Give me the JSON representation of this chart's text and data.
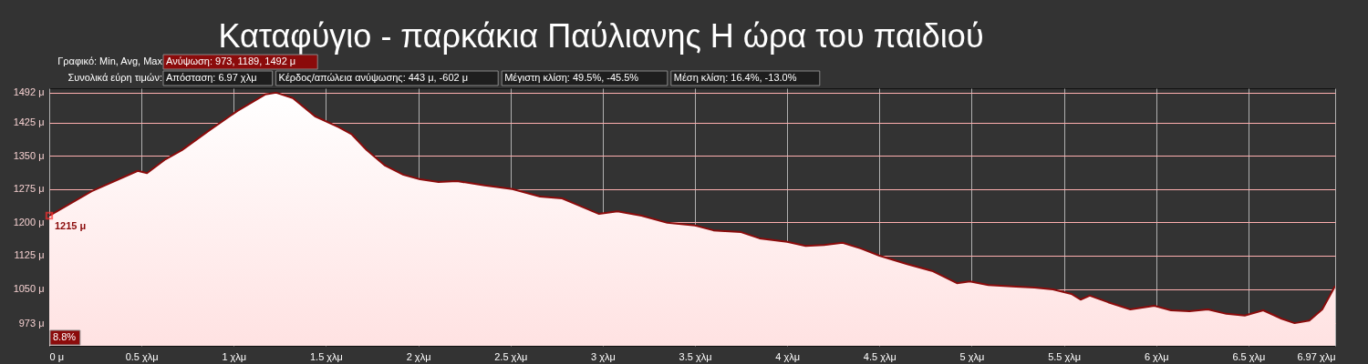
{
  "chart_data": {
    "type": "area",
    "title": "Καταφύγιο - παρκάκια Παύλιανης Η ώρα του παιδιού",
    "x": [
      0,
      0.23,
      0.48,
      0.53,
      0.63,
      0.72,
      0.87,
      1.02,
      1.17,
      1.23,
      1.32,
      1.44,
      1.57,
      1.64,
      1.72,
      1.82,
      1.92,
      2.01,
      2.11,
      2.21,
      2.36,
      2.51,
      2.66,
      2.78,
      2.86,
      2.98,
      3.08,
      3.21,
      3.35,
      3.5,
      3.6,
      3.75,
      3.85,
      4.0,
      4.1,
      4.2,
      4.3,
      4.4,
      4.5,
      4.65,
      4.79,
      4.92,
      4.99,
      5.09,
      5.24,
      5.34,
      5.44,
      5.54,
      5.59,
      5.64,
      5.74,
      5.86,
      5.99,
      6.08,
      6.18,
      6.28,
      6.38,
      6.48,
      6.58,
      6.68,
      6.75,
      6.83,
      6.9,
      6.97
    ],
    "series": [
      {
        "color": "#8b0b0b",
        "values": [
          1215,
          1270,
          1316,
          1311,
          1342,
          1363,
          1408,
          1451,
          1488,
          1492,
          1480,
          1439,
          1414,
          1398,
          1363,
          1328,
          1307,
          1297,
          1291,
          1293,
          1283,
          1275,
          1258,
          1254,
          1240,
          1219,
          1225,
          1215,
          1199,
          1193,
          1182,
          1178,
          1164,
          1156,
          1147,
          1149,
          1154,
          1141,
          1125,
          1106,
          1090,
          1063,
          1067,
          1059,
          1055,
          1053,
          1049,
          1039,
          1026,
          1035,
          1020,
          1004,
          1012,
          1002,
          1000,
          1004,
          994,
          990,
          1002,
          983,
          973,
          979,
          1004,
          1057
        ]
      }
    ],
    "xlim": [
      0,
      6.97
    ],
    "ylim": [
      922,
      1502
    ],
    "xticks": [
      {
        "value": 0,
        "label": "0 μ"
      },
      {
        "value": 0.5,
        "label": "0.5 χλμ"
      },
      {
        "value": 1,
        "label": "1 χλμ"
      },
      {
        "value": 1.5,
        "label": "1.5 χλμ"
      },
      {
        "value": 2,
        "label": "2 χλμ"
      },
      {
        "value": 2.5,
        "label": "2.5 χλμ"
      },
      {
        "value": 3,
        "label": "3 χλμ"
      },
      {
        "value": 3.5,
        "label": "3.5 χλμ"
      },
      {
        "value": 4,
        "label": "4 χλμ"
      },
      {
        "value": 4.5,
        "label": "4.5 χλμ"
      },
      {
        "value": 5,
        "label": "5 χλμ"
      },
      {
        "value": 5.5,
        "label": "5.5 χλμ"
      },
      {
        "value": 6,
        "label": "6 χλμ"
      },
      {
        "value": 6.5,
        "label": "6.5 χλμ"
      },
      {
        "value": 6.97,
        "label": "6.97 χλμ"
      }
    ],
    "yticks": [
      {
        "value": 973,
        "label": "973 μ"
      },
      {
        "value": 1050,
        "label": "1050 μ"
      },
      {
        "value": 1125,
        "label": "1125 μ"
      },
      {
        "value": 1200,
        "label": "1200 μ"
      },
      {
        "value": 1275,
        "label": "1275 μ"
      },
      {
        "value": 1350,
        "label": "1350 μ"
      },
      {
        "value": 1425,
        "label": "1425 μ"
      },
      {
        "value": 1492,
        "label": "1492 μ"
      }
    ],
    "grid": true,
    "annotations": [
      "Γραφικό: Min, Avg, Max",
      "Ανύψωση: 973, 1189, 1492 μ",
      "Συνολικά εύρη τιμών:",
      "Απόσταση: 6.97 χλμ",
      "Κέρδος/απώλεια ανύψωσης: 443 μ, -602 μ",
      "Μέγιστη κλίση: 49.5%, -45.5%",
      "Μέση κλίση: 16.4%, -13.0%",
      "8.8%",
      {
        "text": "1215 μ",
        "x": 0,
        "y": 1215
      }
    ]
  }
}
